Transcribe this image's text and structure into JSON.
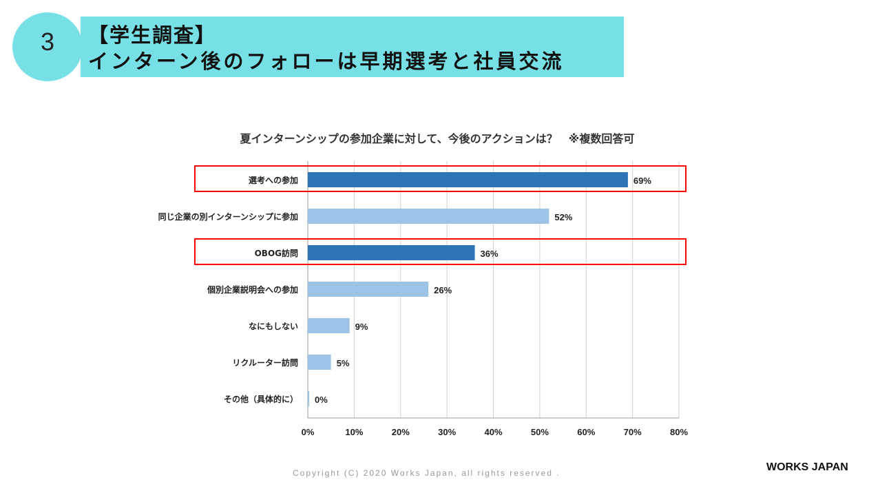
{
  "header": {
    "number": "3",
    "title_line1": "【学生調査】",
    "title_line2": "インターン後のフォローは早期選考と社員交流"
  },
  "footer": {
    "copyright": "Copyright (C) 2020 Works Japan, all rights reserved .",
    "logo": "WORKS JAPAN"
  },
  "colors": {
    "highlight": "#2e75b6",
    "normal": "#9dc3e6",
    "box": "#ff0000",
    "banner": "#76e0e6"
  },
  "chart_data": {
    "type": "bar",
    "orientation": "horizontal",
    "title": "夏インターンシップの参加企業に対して、今後のアクションは？　※複数回答可",
    "categories": [
      "選考への参加",
      "同じ企業の別インターンシップに参加",
      "OBOG訪問",
      "個別企業説明会への参加",
      "なにもしない",
      "リクルーター訪問",
      "その他（具体的に）"
    ],
    "values": [
      69,
      52,
      36,
      26,
      9,
      5,
      0.3
    ],
    "labels": [
      "69%",
      "52%",
      "36%",
      "26%",
      "9%",
      "5%",
      "0%"
    ],
    "highlighted": [
      true,
      false,
      true,
      false,
      false,
      false,
      false
    ],
    "xlim": [
      0,
      80
    ],
    "xticks": [
      "0%",
      "10%",
      "20%",
      "30%",
      "40%",
      "50%",
      "60%",
      "70%",
      "80%"
    ],
    "grid": true
  }
}
